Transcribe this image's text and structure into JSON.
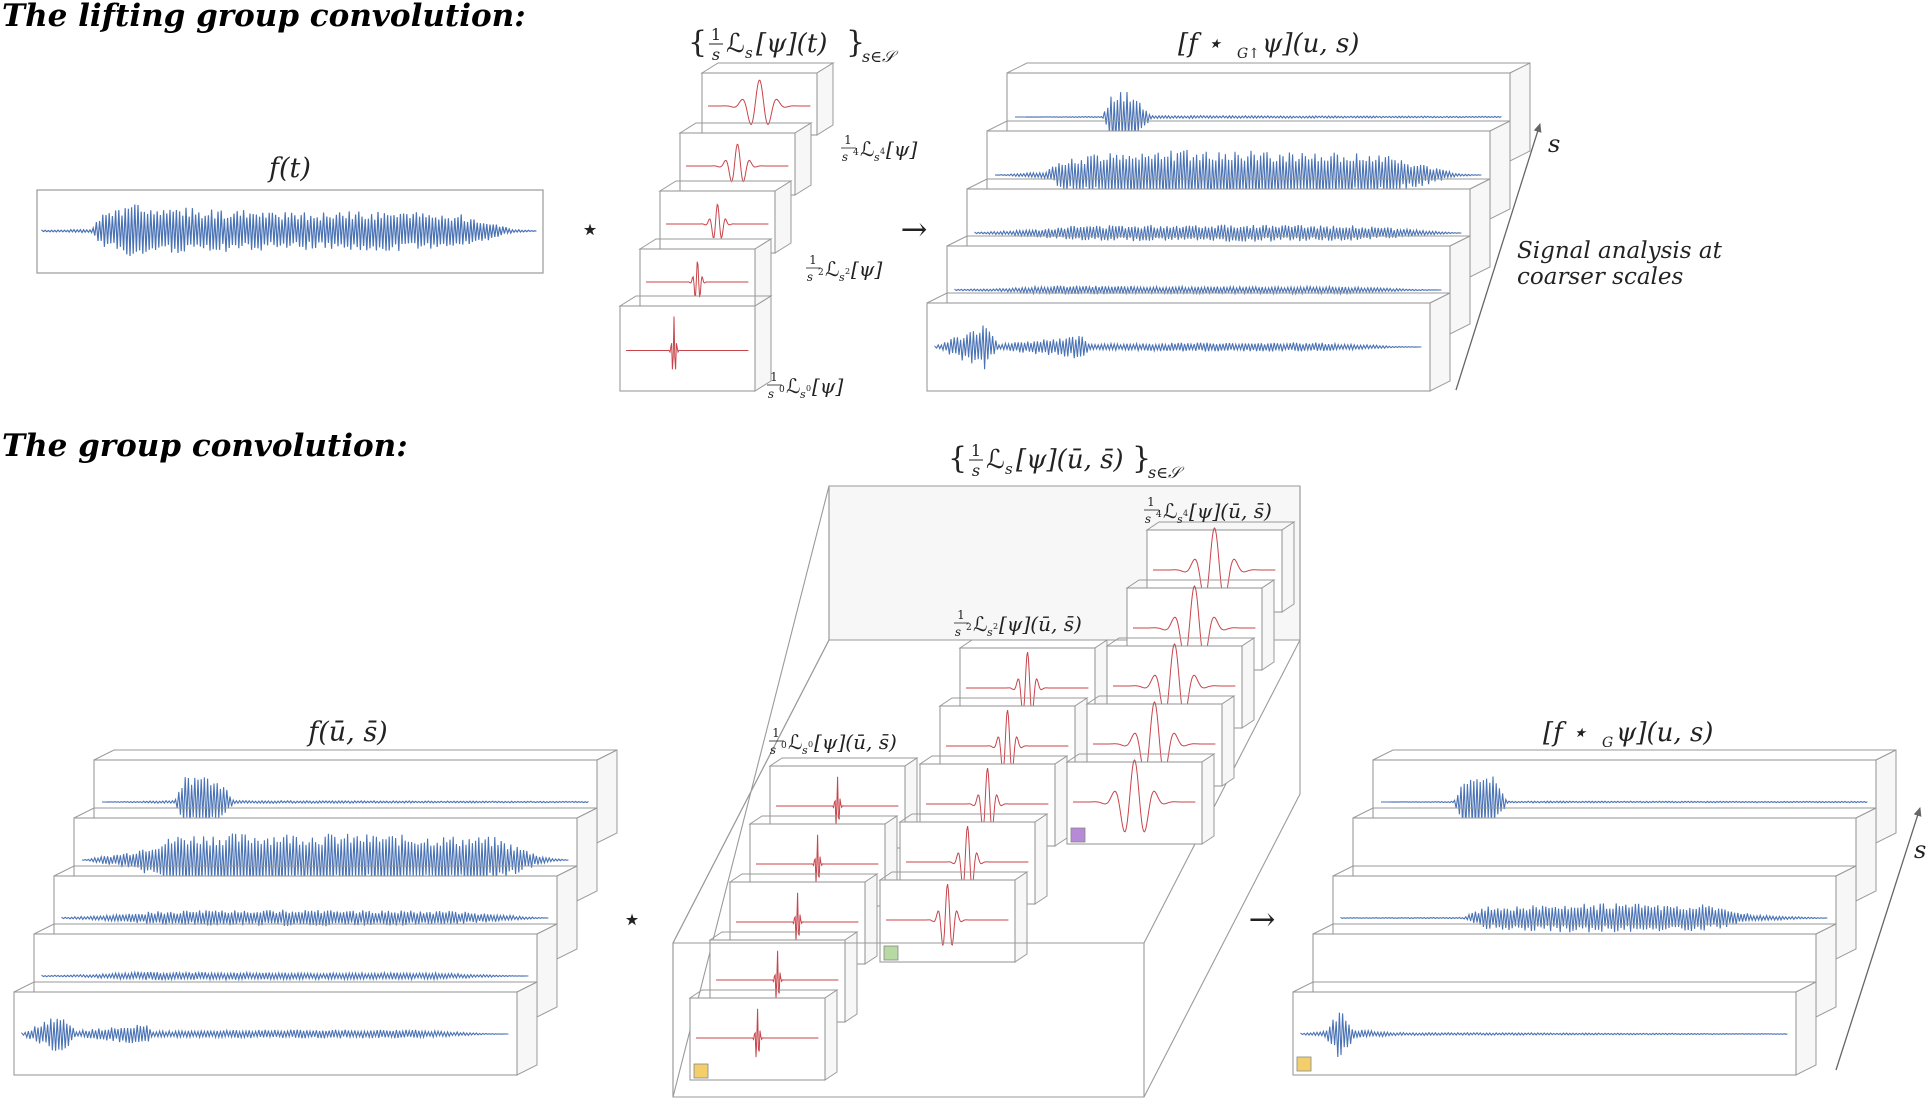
{
  "colors": {
    "signal": "#4a73b5",
    "kernel": "#c8444b",
    "frame": "#9a9a9a",
    "panel_fill": "#ffffff",
    "box_fill": "#f7f7f7",
    "marker_yellow": "#f2cf6b",
    "marker_green": "#b7d9a3",
    "marker_purple": "#b78ad8"
  },
  "lifting": {
    "title": "The lifting group convolution:",
    "input_label": "f(t)",
    "op_symbol": "⋆",
    "arrow_symbol": "→",
    "kernel_set": {
      "brace_left": "{",
      "frac_num": "1",
      "frac_den": "s",
      "body": "ℒ",
      "sub": "s",
      "tail": "[ψ](t)",
      "brace_right": "}",
      "index": "s∈𝒮"
    },
    "kernel_label_s4": {
      "num": "1",
      "den": "s",
      "den_exp": "4",
      "op": "ℒ",
      "sub": "s",
      "sub_exp": "4",
      "tail": "[ψ]"
    },
    "kernel_label_s2": {
      "num": "1",
      "den": "s",
      "den_exp": "2",
      "op": "ℒ",
      "sub": "s",
      "sub_exp": "2",
      "tail": "[ψ]"
    },
    "kernel_label_s0": {
      "num": "1",
      "den": "s",
      "den_exp": "0",
      "op": "ℒ",
      "sub": "s",
      "sub_exp": "0",
      "tail": "[ψ]"
    },
    "output_label": {
      "lead": "[f ⋆",
      "sub": "G↑",
      "tail": " ψ](u, s)"
    },
    "axis_label": "s",
    "note_line1": "Signal analysis at",
    "note_line2": "coarser scales"
  },
  "group": {
    "title": "The group convolution:",
    "input_label": "f(ū, s̄)",
    "op_symbol": "⋆",
    "arrow_symbol": "→",
    "kernel_set": {
      "brace_left": "{",
      "frac_num": "1",
      "frac_den": "s",
      "body": "ℒ",
      "sub": "s",
      "tail": "[ψ](ū, s̄)",
      "brace_right": "}",
      "index": "s∈𝒮"
    },
    "kernel_label_s4": {
      "num": "1",
      "den": "s",
      "den_exp": "4",
      "op": "ℒ",
      "sub": "s",
      "sub_exp": "4",
      "tail": "[ψ](ū, s̄)"
    },
    "kernel_label_s2": {
      "num": "1",
      "den": "s",
      "den_exp": "2",
      "op": "ℒ",
      "sub": "s",
      "sub_exp": "2",
      "tail": "[ψ](ū, s̄)"
    },
    "kernel_label_s0": {
      "num": "1",
      "den": "s",
      "den_exp": "0",
      "op": "ℒ",
      "sub": "s",
      "sub_exp": "0",
      "tail": "[ψ](ū, s̄)"
    },
    "output_label": {
      "lead": "[f ⋆",
      "sub": "G",
      "tail": " ψ](u, s)"
    },
    "axis_label": "s"
  }
}
